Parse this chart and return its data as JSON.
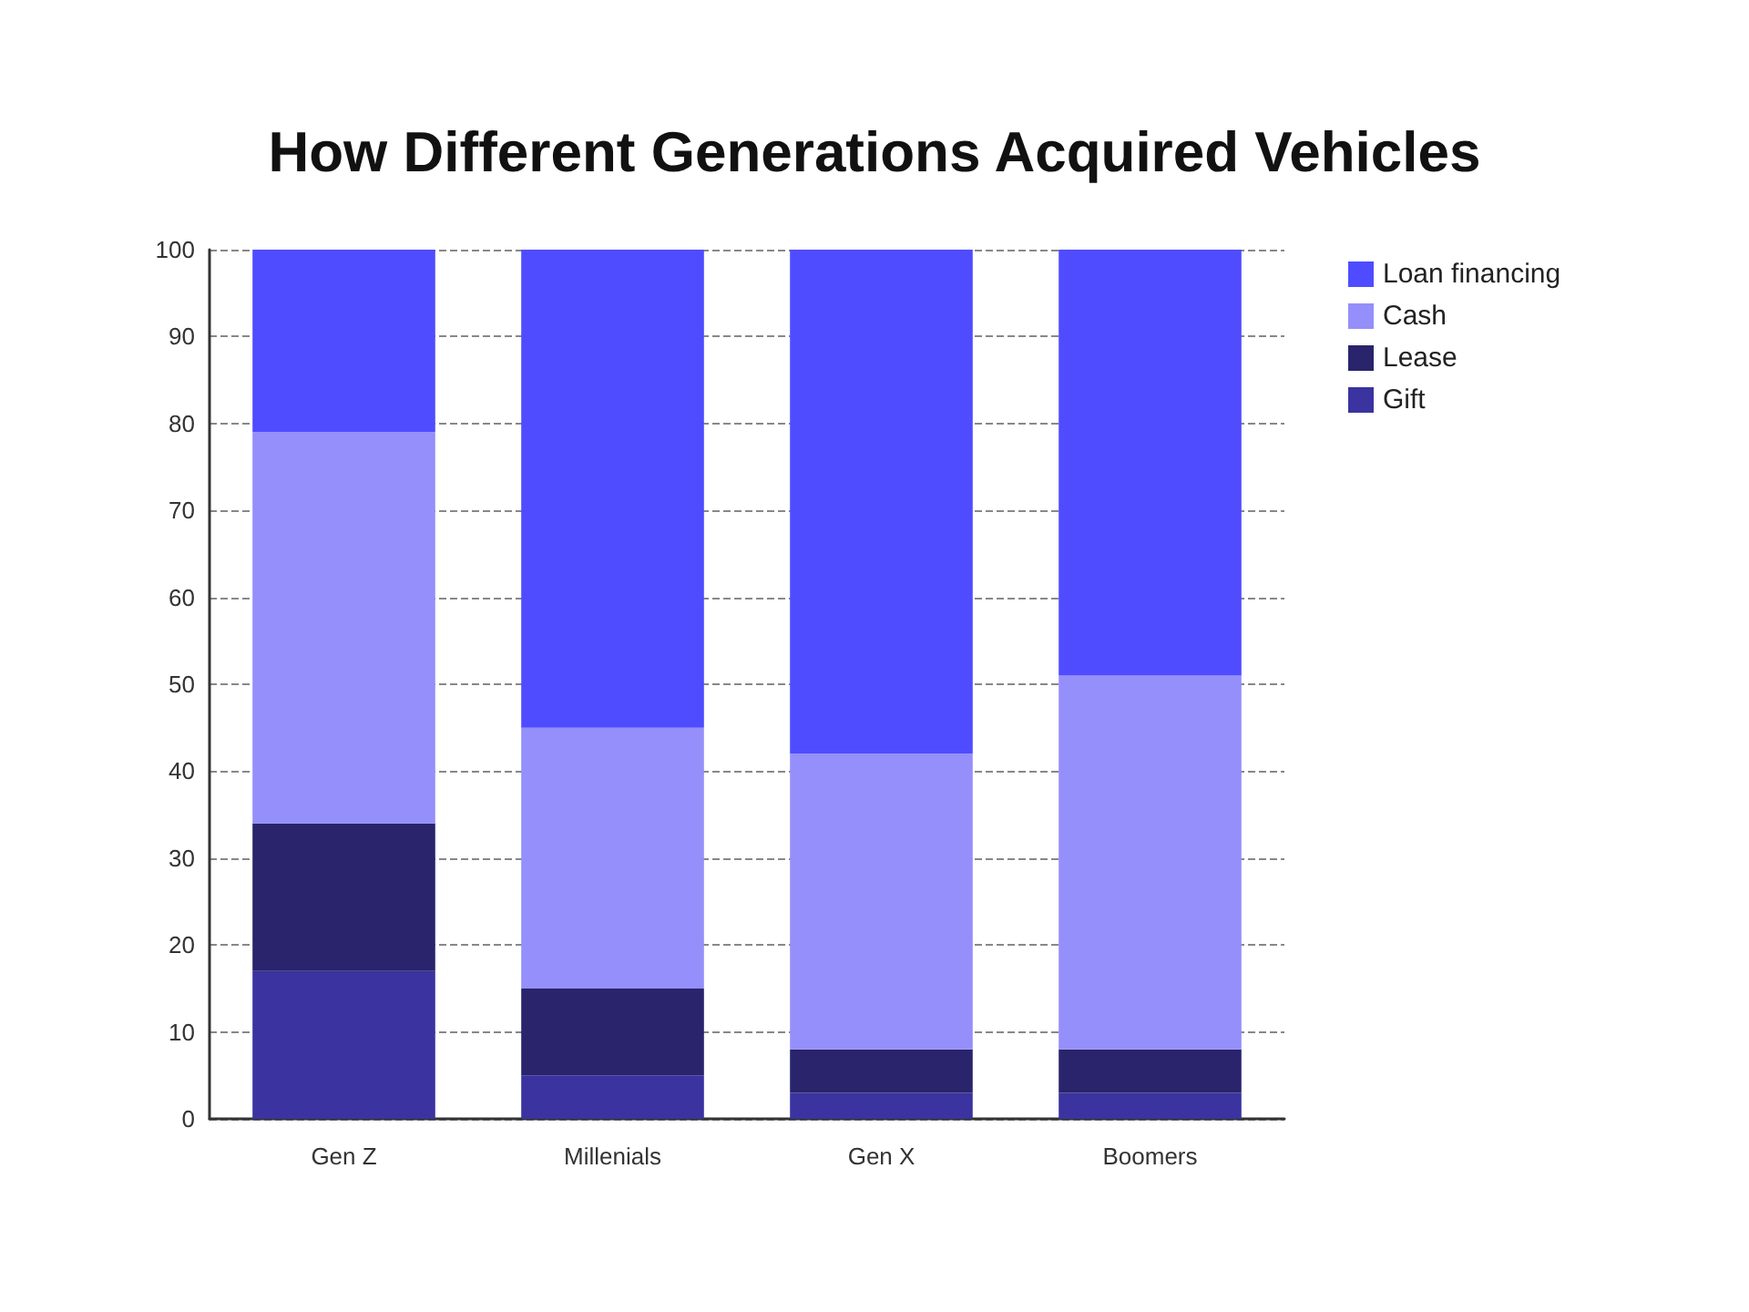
{
  "chart_data": {
    "type": "bar",
    "title": "How Different Generations Acquired Vehicles",
    "categories": [
      "Gen Z",
      "Millenials",
      "Gen X",
      "Boomers"
    ],
    "stacked": true,
    "series": [
      {
        "name": "Gift",
        "color": "#3a33a0",
        "values": [
          17,
          5,
          3,
          3
        ]
      },
      {
        "name": "Lease",
        "color": "#29246b",
        "values": [
          17,
          10,
          5,
          5
        ]
      },
      {
        "name": "Cash",
        "color": "#948ffa",
        "values": [
          45,
          30,
          34,
          43
        ]
      },
      {
        "name": "Loan financing",
        "color": "#4f4cff",
        "values": [
          21,
          55,
          58,
          49
        ]
      }
    ],
    "ylim": [
      0,
      100
    ],
    "yticks": [
      0,
      10,
      20,
      30,
      40,
      50,
      60,
      70,
      80,
      90,
      100
    ],
    "grid": "y",
    "legend": "top right"
  }
}
